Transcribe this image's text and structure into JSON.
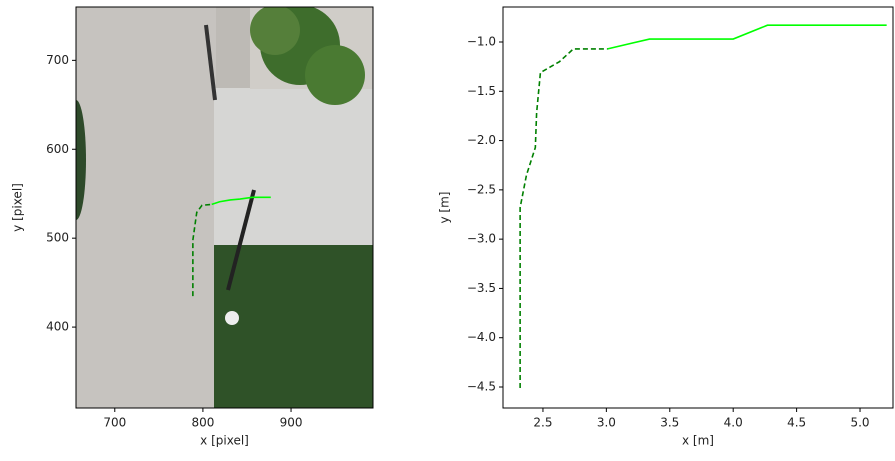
{
  "chart_data": [
    {
      "type": "image-overlay",
      "xlabel": "x [pixel]",
      "ylabel": "y [pixel]",
      "xlim": [
        656,
        993
      ],
      "ylim": [
        309,
        760
      ],
      "xticks": [
        700,
        800,
        900
      ],
      "yticks": [
        400,
        500,
        600,
        700
      ],
      "series": [
        {
          "color": "#008000",
          "style": "dashed",
          "x": [
            788.6,
            788.6,
            793,
            799,
            810
          ],
          "values": [
            434.8,
            497.8,
            529,
            537,
            538
          ]
        },
        {
          "color": "#00ff00",
          "style": "solid",
          "x": [
            810,
            819,
            831,
            842,
            856,
            877
          ],
          "values": [
            538,
            541,
            543,
            544,
            546,
            546
          ]
        }
      ]
    },
    {
      "type": "line",
      "xlabel": "x [m]",
      "ylabel": "y [m]",
      "xlim": [
        2.185,
        5.26
      ],
      "ylim": [
        -4.713,
        -0.645
      ],
      "xticks": [
        2.5,
        {
          "value": 3,
          "label": "3.0"
        },
        3.5,
        {
          "value": 4,
          "label": "4.0"
        },
        4.5,
        {
          "value": 5,
          "label": "5.0"
        }
      ],
      "yticks": [
        {
          "value": -1,
          "label": "−1.0"
        },
        {
          "value": -1.5,
          "label": "−1.5"
        },
        {
          "value": -2,
          "label": "−2.0"
        },
        {
          "value": -2.5,
          "label": "−2.5"
        },
        {
          "value": -3,
          "label": "−3.0"
        },
        {
          "value": -3.5,
          "label": "−3.5"
        },
        {
          "value": -4,
          "label": "−4.0"
        },
        {
          "value": -4.5,
          "label": "−4.5"
        }
      ],
      "series": [
        {
          "color": "#008000",
          "style": "dashed",
          "x": [
            2.32,
            2.32,
            2.37,
            2.44,
            2.45,
            2.48,
            2.63,
            2.74,
            3.01
          ],
          "values": [
            -4.51,
            -2.68,
            -2.35,
            -2.07,
            -1.72,
            -1.31,
            -1.2,
            -1.07,
            -1.07
          ]
        },
        {
          "color": "#00ff00",
          "style": "solid",
          "x": [
            3.01,
            3.34,
            4.0,
            4.27,
            5.21
          ],
          "values": [
            -1.07,
            -0.97,
            -0.97,
            -0.83,
            -0.83
          ]
        }
      ]
    }
  ]
}
